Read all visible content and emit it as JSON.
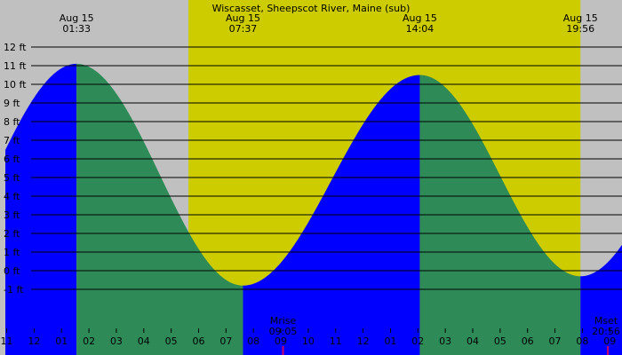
{
  "chart_data": {
    "type": "area",
    "title": "Wiscasset, Sheepscot River, Maine (sub)",
    "y_unit": "ft",
    "y_ticks": [
      12,
      11,
      10,
      9,
      8,
      7,
      6,
      5,
      4,
      3,
      2,
      1,
      0,
      -1
    ],
    "y_tick_labels": [
      "12 ft",
      "11 ft",
      "10 ft",
      "9 ft",
      "8 ft",
      "7 ft",
      "6 ft",
      "5 ft",
      "4 ft",
      "3 ft",
      "2 ft",
      "1 ft",
      "0 ft",
      "-1 ft"
    ],
    "x_hour_labels": [
      "11",
      "12",
      "01",
      "02",
      "03",
      "04",
      "05",
      "06",
      "07",
      "08",
      "09",
      "10",
      "11",
      "12",
      "01",
      "02",
      "03",
      "04",
      "05",
      "06",
      "07",
      "08",
      "09"
    ],
    "x_range_hours": [
      -1.05,
      21.6
    ],
    "sun_period_hours": [
      5.63,
      19.93
    ],
    "tide_extremes": [
      {
        "date": "Aug 15",
        "time": "01:33",
        "hour": 1.55,
        "height": 11.1,
        "type": "high"
      },
      {
        "date": "Aug 15",
        "time": "07:37",
        "hour": 7.62,
        "height": -0.8,
        "type": "low"
      },
      {
        "date": "Aug 15",
        "time": "14:04",
        "hour": 14.07,
        "height": 10.5,
        "type": "high"
      },
      {
        "date": "Aug 15",
        "time": "19:56",
        "hour": 19.93,
        "height": -0.3,
        "type": "low"
      }
    ],
    "moon_events": [
      {
        "label": "Mrise",
        "time": "09:05",
        "hour": 9.08
      },
      {
        "label": "Mset",
        "time": "20:56",
        "hour": 20.93
      }
    ],
    "colors": {
      "night": "#c0c0c0",
      "day": "#cccc00",
      "rising": "#0000ff",
      "falling": "#2e8b57",
      "grid": "#000000",
      "moon_tick": "#cc0066"
    }
  }
}
